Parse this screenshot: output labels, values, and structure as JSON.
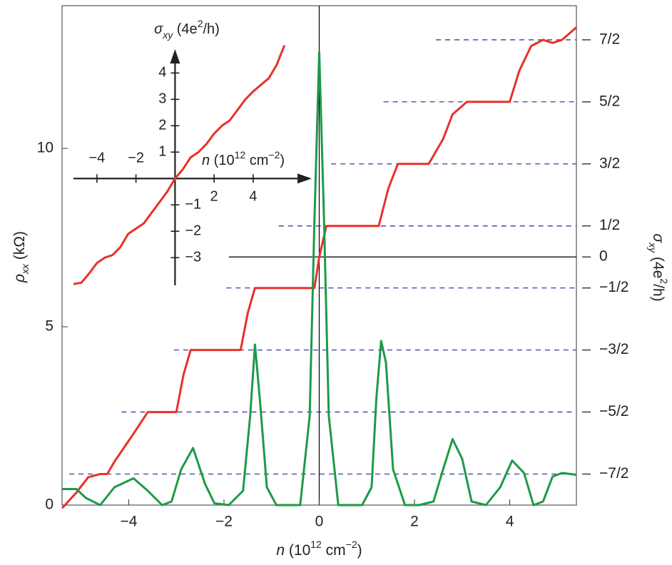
{
  "chart_data": [
    {
      "type": "line",
      "x_label": [
        {
          "text": "n",
          "style": "italic"
        },
        {
          "text": " (10"
        },
        {
          "text": "12",
          "style": "sup"
        },
        {
          "text": " cm"
        },
        {
          "text": "−2",
          "style": "sup"
        },
        {
          "text": ")"
        }
      ],
      "y_label": [
        {
          "text": "ρ",
          "style": "italic"
        },
        {
          "text": "xx",
          "style": "sub"
        },
        {
          "text": " (kΩ)"
        }
      ],
      "y2_label": [
        {
          "text": "σ",
          "style": "italic"
        },
        {
          "text": "xy",
          "style": "sub"
        },
        {
          "text": " (4e"
        },
        {
          "text": "2",
          "style": "sup"
        },
        {
          "text": "/h)"
        }
      ],
      "xlim": [
        -5.4,
        5.4
      ],
      "ylim": [
        0,
        14
      ],
      "y2lim": [
        -4,
        4.05
      ],
      "xticks": [
        {
          "value": -4,
          "label": "−4"
        },
        {
          "value": -2,
          "label": "−2"
        },
        0,
        2,
        4
      ],
      "yticks": [
        0,
        5,
        10
      ],
      "y2ticks": [
        {
          "value": 3.5,
          "label": "7/2"
        },
        {
          "value": 2.5,
          "label": "5/2"
        },
        {
          "value": 1.5,
          "label": "3/2"
        },
        {
          "value": 0.5,
          "label": "1/2"
        },
        0,
        {
          "value": -0.5,
          "label": "−1/2"
        },
        {
          "value": -1.5,
          "label": "−3/2"
        },
        {
          "value": -2.5,
          "label": "−5/2"
        },
        {
          "value": -3.5,
          "label": "−7/2"
        }
      ],
      "y2_grid": "dashed",
      "grid_color": "#3b3b9c",
      "zero_lines": true,
      "series": [
        {
          "color": "#e8312a",
          "axis": "y2",
          "x": [
            -5.4,
            -5.1,
            -4.85,
            -4.6,
            -4.45,
            -4.3,
            -3.9,
            -3.6,
            -3.0,
            -2.85,
            -2.7,
            -1.65,
            -1.5,
            -1.35,
            -0.1,
            0.0,
            0.15,
            1.25,
            1.45,
            1.65,
            2.3,
            2.6,
            2.8,
            3.1,
            4.0,
            4.2,
            4.45,
            4.7,
            4.9,
            5.1,
            5.4
          ],
          "values": [
            -4.05,
            -3.8,
            -3.55,
            -3.5,
            -3.5,
            -3.3,
            -2.85,
            -2.5,
            -2.5,
            -1.9,
            -1.5,
            -1.5,
            -0.9,
            -0.5,
            -0.5,
            0.0,
            0.5,
            0.5,
            1.1,
            1.5,
            1.5,
            1.9,
            2.3,
            2.5,
            2.5,
            3.0,
            3.4,
            3.5,
            3.45,
            3.5,
            3.7
          ]
        },
        {
          "color": "#1c9a48",
          "axis": "y",
          "x": [
            -5.4,
            -5.1,
            -4.9,
            -4.6,
            -4.3,
            -3.9,
            -3.6,
            -3.3,
            -3.1,
            -2.9,
            -2.65,
            -2.4,
            -2.2,
            -1.9,
            -1.6,
            -1.45,
            -1.35,
            -1.25,
            -1.1,
            -0.9,
            -0.4,
            -0.2,
            -0.1,
            0.0,
            0.1,
            0.2,
            0.4,
            0.9,
            1.1,
            1.2,
            1.3,
            1.4,
            1.55,
            1.8,
            2.1,
            2.4,
            2.6,
            2.8,
            3.0,
            3.2,
            3.5,
            3.8,
            4.05,
            4.3,
            4.5,
            4.7,
            4.9,
            5.1,
            5.4
          ],
          "values": [
            0.45,
            0.45,
            0.2,
            0.0,
            0.5,
            0.75,
            0.4,
            0.0,
            0.1,
            1.0,
            1.6,
            0.6,
            0.05,
            0.0,
            0.4,
            2.5,
            4.5,
            3.0,
            0.5,
            0.0,
            0.0,
            2.5,
            8.0,
            12.7,
            8.0,
            2.5,
            0.0,
            0.0,
            0.5,
            3.0,
            4.6,
            4.0,
            1.0,
            0.0,
            0.0,
            0.1,
            1.0,
            1.85,
            1.3,
            0.1,
            0.0,
            0.5,
            1.25,
            0.9,
            0.0,
            0.1,
            0.8,
            0.9,
            0.85
          ]
        }
      ]
    },
    {
      "type": "line",
      "x_label": [
        {
          "text": "n",
          "style": "italic"
        },
        {
          "text": " (10"
        },
        {
          "text": "12",
          "style": "sup"
        },
        {
          "text": " cm"
        },
        {
          "text": "−2",
          "style": "sup"
        },
        {
          "text": ")"
        }
      ],
      "y_label": [
        {
          "text": "σ",
          "style": "italic"
        },
        {
          "text": "xy",
          "style": "sub"
        },
        {
          "text": " (4e"
        },
        {
          "text": "2",
          "style": "sup"
        },
        {
          "text": "/h)"
        }
      ],
      "xlim": [
        -5.2,
        7.0
      ],
      "ylim": [
        -4.05,
        4.9
      ],
      "xticks": [
        {
          "value": -4,
          "label": "−4"
        },
        {
          "value": -2,
          "label": "−2"
        },
        2,
        4
      ],
      "yticks": [
        1,
        2,
        3,
        4,
        {
          "value": -1,
          "label": "−1"
        },
        {
          "value": -2,
          "label": "−2"
        },
        {
          "value": -3,
          "label": "−3"
        }
      ],
      "series": [
        {
          "color": "#e8312a",
          "x": [
            -5.2,
            -4.8,
            -4.4,
            -4.0,
            -3.6,
            -3.2,
            -2.8,
            -2.4,
            -2.0,
            -1.6,
            -1.2,
            -0.8,
            -0.4,
            0,
            0.4,
            0.8,
            1.2,
            1.6,
            2.0,
            2.4,
            2.8,
            3.2,
            3.6,
            4.0,
            4.4,
            4.8,
            5.2,
            5.6
          ],
          "values": [
            -4.0,
            -3.95,
            -3.6,
            -3.2,
            -3.0,
            -2.9,
            -2.6,
            -2.1,
            -1.9,
            -1.7,
            -1.3,
            -0.9,
            -0.5,
            0,
            0.35,
            0.8,
            1.0,
            1.3,
            1.7,
            2.0,
            2.2,
            2.6,
            3.0,
            3.3,
            3.55,
            3.8,
            4.3,
            5.05
          ]
        }
      ]
    }
  ]
}
